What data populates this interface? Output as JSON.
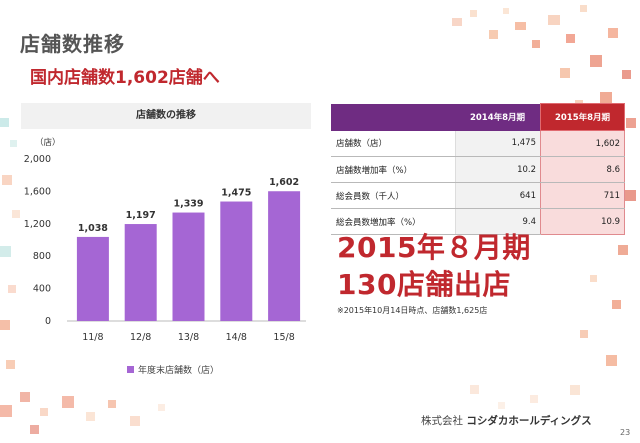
{
  "title": "店舗数推移",
  "subtitle": "国内店舗数1,602店舗へ",
  "chart": {
    "heading": "店舗数の推移",
    "unit": "（店）",
    "legend": "年度末店舗数（店）"
  },
  "chart_data": {
    "type": "bar",
    "title": "店舗数の推移",
    "ylabel": "（店）",
    "categories": [
      "11/8",
      "12/8",
      "13/8",
      "14/8",
      "15/8"
    ],
    "series": [
      {
        "name": "年度末店舗数（店）",
        "values": [
          1038,
          1197,
          1339,
          1475,
          1602
        ],
        "color": "#a566d4"
      }
    ],
    "data_labels": [
      "1,038",
      "1,197",
      "1,339",
      "1,475",
      "1,602"
    ],
    "yticks": [
      "0",
      "400",
      "800",
      "1,200",
      "1,600",
      "2,000"
    ],
    "ylim": [
      0,
      2000
    ],
    "grid": false,
    "legend_position": "bottom"
  },
  "table": {
    "headers": [
      "",
      "2014年8月期",
      "2015年8月期"
    ],
    "rows": [
      {
        "label": "店舗数（店）",
        "v2014": "1,475",
        "v2015": "1,602"
      },
      {
        "label": "店舗数増加率（%）",
        "v2014": "10.2",
        "v2015": "8.6"
      },
      {
        "label": "総会員数（千人）",
        "v2014": "641",
        "v2015": "711"
      },
      {
        "label": "総会員数増加率（%）",
        "v2014": "9.4",
        "v2015": "10.9"
      }
    ]
  },
  "highlight": {
    "line1": "2015年８月期",
    "line2": "130店舗出店",
    "note": "※2015年10月14日時点、店舗数1,625店"
  },
  "footer": {
    "company_prefix": "株式会社",
    "company_name": "コシダカホールディングス",
    "page": "23"
  },
  "colors": {
    "bar": "#a566d4",
    "accent_red": "#c0282e",
    "header_purple": "#6f2c82"
  }
}
